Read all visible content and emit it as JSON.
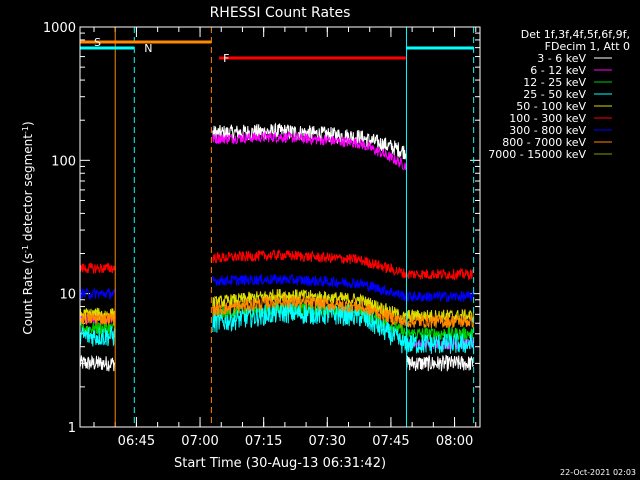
{
  "chart_data": {
    "type": "line",
    "title": "RHESSI Count Rates",
    "xlabel": "Start Time (30-Aug-13 06:31:42)",
    "ylabel_main": "Count Rate (s",
    "ylabel_sup1": "-1",
    "ylabel_mid": " detector segment",
    "ylabel_sup2": "-1",
    "ylabel_end": ")",
    "yscale": "log",
    "ylim": [
      1,
      1000
    ],
    "xlim": [
      "06:31:42",
      "08:06:00"
    ],
    "x_ticks": [
      "06:45",
      "07:00",
      "07:15",
      "07:30",
      "07:45",
      "08:00"
    ],
    "y_ticks": [
      "1",
      "10",
      "100",
      "1000"
    ],
    "legend_header": [
      "Det 1f,3f,4f,5f,6f,9f,",
      "FDecim 1, Att 0"
    ],
    "timestamp": "22-Oct-2021 02:03",
    "segments": [
      [
        "06:31:42",
        "06:40:00"
      ],
      [
        "07:03:00",
        "07:48:40"
      ],
      [
        "07:48:40",
        "08:04:30"
      ]
    ],
    "series": [
      {
        "name": "3 - 6 keV",
        "color": "#ffffff",
        "levels": [
          3.0,
          160,
          165,
          150,
          115,
          3.0
        ],
        "noise": 0.06
      },
      {
        "name": "6 - 12 keV",
        "color": "#ff00ff",
        "levels": [
          6.5,
          145,
          150,
          135,
          90,
          4.2
        ],
        "noise": 0.04
      },
      {
        "name": "12 - 25 keV",
        "color": "#00cc00",
        "levels": [
          5.5,
          7.0,
          7.8,
          7.4,
          5.0,
          5.0
        ],
        "noise": 0.05
      },
      {
        "name": "25 - 50 keV",
        "color": "#00ffff",
        "levels": [
          4.8,
          6.0,
          7.2,
          6.8,
          4.0,
          4.2
        ],
        "noise": 0.08
      },
      {
        "name": "50 - 100 keV",
        "color": "#dddd00",
        "levels": [
          7.0,
          8.5,
          9.8,
          9.0,
          6.5,
          6.8
        ],
        "noise": 0.05
      },
      {
        "name": "100 - 300 keV",
        "color": "#ff0000",
        "levels": [
          15.5,
          18.5,
          19.5,
          18.0,
          14.0,
          14.0
        ],
        "noise": 0.04
      },
      {
        "name": "300 - 800 keV",
        "color": "#0000ff",
        "levels": [
          10.0,
          12.5,
          12.8,
          12.0,
          9.5,
          9.5
        ],
        "noise": 0.04
      },
      {
        "name": "800 - 7000 keV",
        "color": "#ff8800",
        "levels": [
          6.5,
          7.5,
          8.8,
          8.0,
          6.0,
          6.2
        ],
        "noise": 0.05
      },
      {
        "name": "7000 - 15000 keV",
        "color": "#889900",
        "levels": [],
        "noise": 0.0
      }
    ],
    "flags": [
      {
        "label": "S",
        "color": "#ff8800",
        "start": "06:31:42",
        "end": "07:02:40"
      },
      {
        "label": "N",
        "color": "#00ffff",
        "start": "06:31:42",
        "end": "06:44:30"
      },
      {
        "label": "F",
        "color": "#ff0000",
        "start": "07:04:30",
        "end": "07:48:30"
      },
      {
        "label": "",
        "color": "#00ffff",
        "start": "07:48:40",
        "end": "08:04:30"
      }
    ],
    "vlines": [
      {
        "time": "06:31:42",
        "color": "#00ffff",
        "style": "solid"
      },
      {
        "time": "06:40:00",
        "color": "#ff8800",
        "style": "solid"
      },
      {
        "time": "06:44:30",
        "color": "#00ffff",
        "style": "dashed"
      },
      {
        "time": "07:02:40",
        "color": "#ff8800",
        "style": "dashed"
      },
      {
        "time": "07:48:40",
        "color": "#00ffff",
        "style": "solid"
      },
      {
        "time": "08:04:30",
        "color": "#00ffff",
        "style": "dashed"
      }
    ]
  }
}
